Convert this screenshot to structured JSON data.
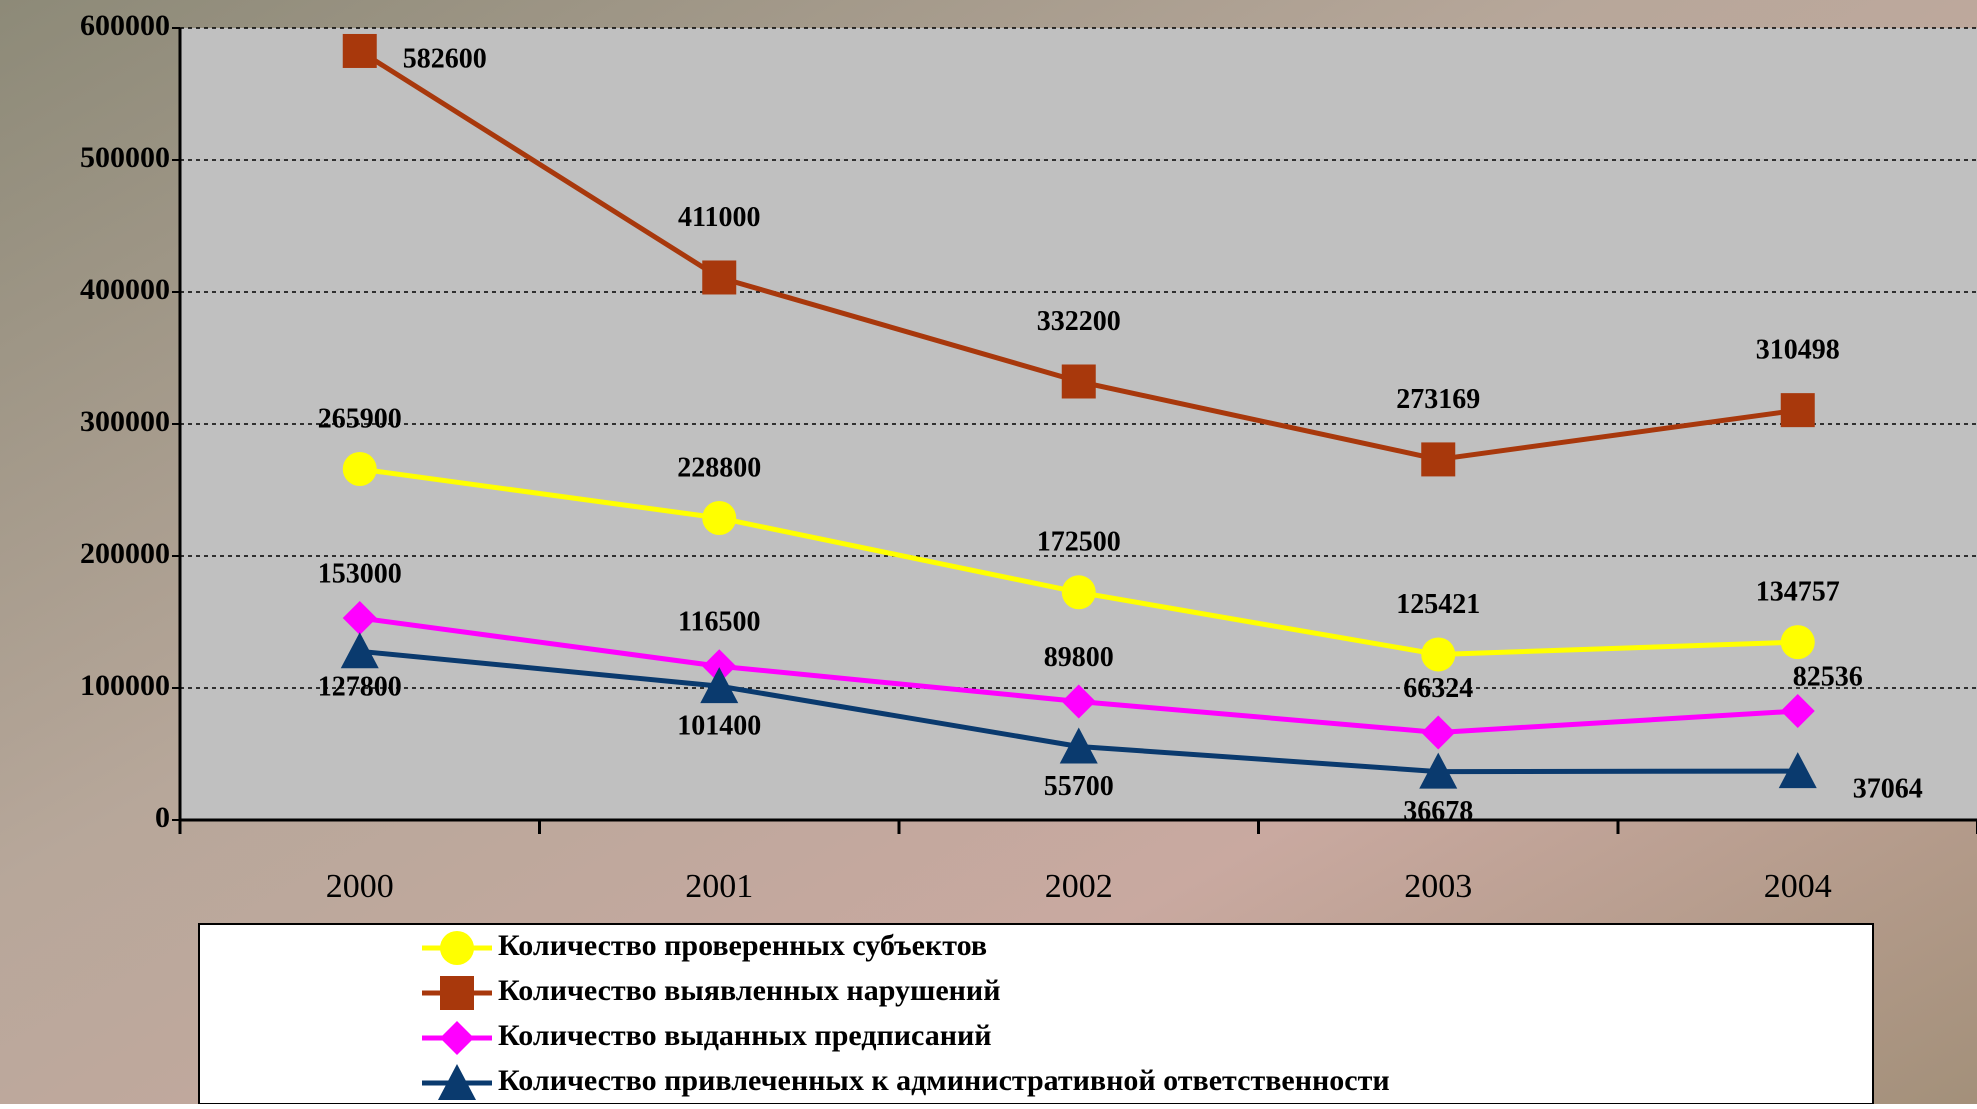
{
  "chart_data": {
    "type": "line",
    "categories": [
      "2000",
      "2001",
      "2002",
      "2003",
      "2004"
    ],
    "series": [
      {
        "name": "Количество проверенных субъектов",
        "color": "#ffff00",
        "marker": "circle",
        "values": [
          265900,
          228800,
          172500,
          125421,
          134757
        ]
      },
      {
        "name": "Количество выявленных нарушений",
        "color": "#a8380c",
        "marker": "square",
        "values": [
          582600,
          411000,
          332200,
          273169,
          310498
        ]
      },
      {
        "name": "Количество выданных предписаний",
        "color": "#ff00ff",
        "marker": "diamond",
        "values": [
          153000,
          116500,
          89800,
          66324,
          82536
        ]
      },
      {
        "name": "Количество привлеченных к административной ответственности",
        "color": "#0a3a6e",
        "marker": "triangle",
        "values": [
          127800,
          101400,
          55700,
          36678,
          37064
        ]
      }
    ],
    "ylim": [
      0,
      600000
    ],
    "yticks": [
      0,
      100000,
      200000,
      300000,
      400000,
      500000,
      600000
    ],
    "grid": true
  }
}
